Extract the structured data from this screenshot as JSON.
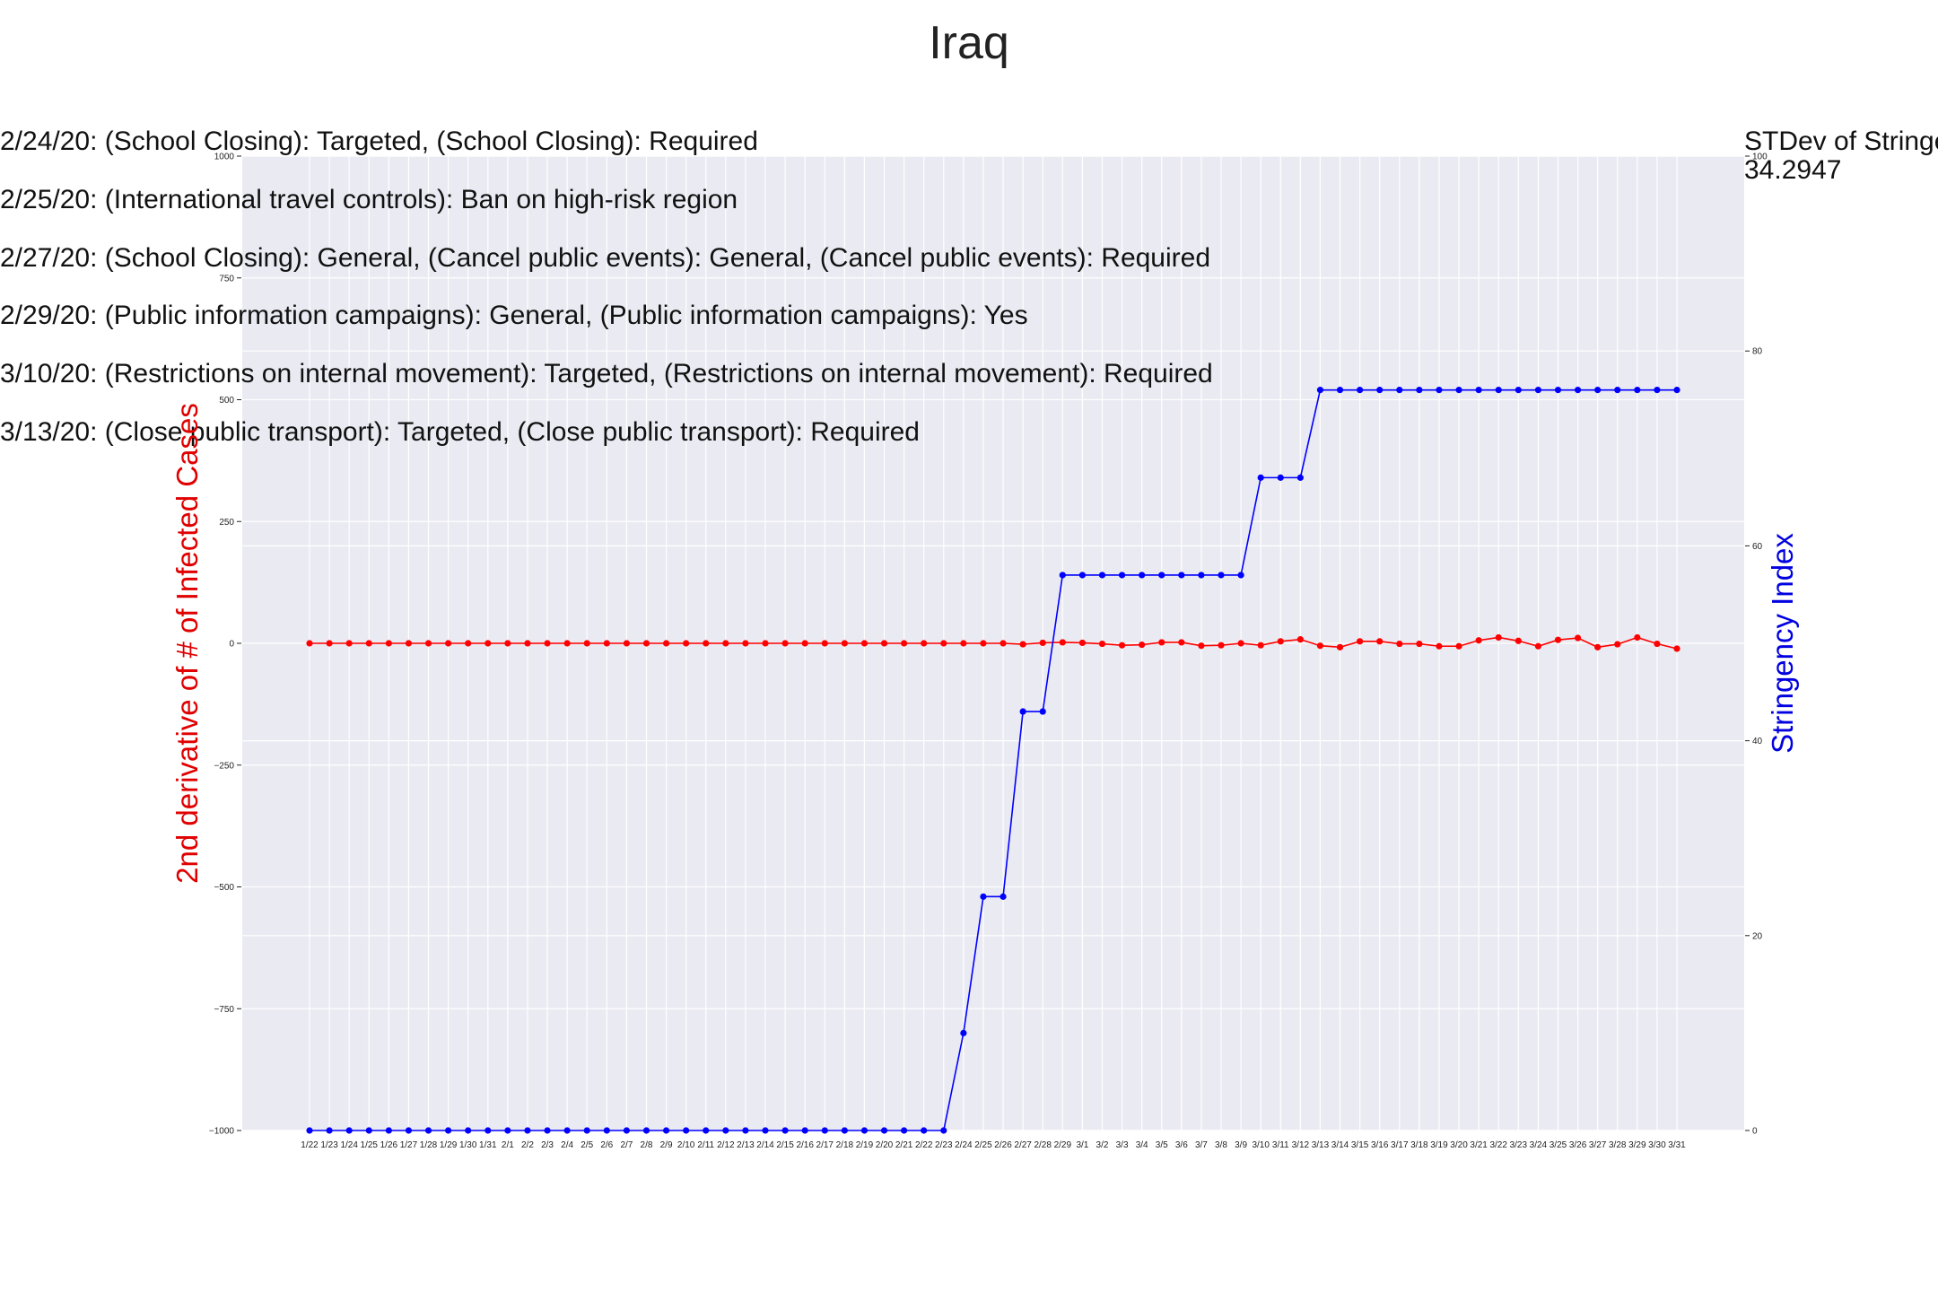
{
  "chart_data": {
    "type": "line",
    "title": "Iraq",
    "x": [
      "1/22",
      "1/23",
      "1/24",
      "1/25",
      "1/26",
      "1/27",
      "1/28",
      "1/29",
      "1/30",
      "1/31",
      "2/1",
      "2/2",
      "2/3",
      "2/4",
      "2/5",
      "2/6",
      "2/7",
      "2/8",
      "2/9",
      "2/10",
      "2/11",
      "2/12",
      "2/13",
      "2/14",
      "2/15",
      "2/16",
      "2/17",
      "2/18",
      "2/19",
      "2/20",
      "2/21",
      "2/22",
      "2/23",
      "2/24",
      "2/25",
      "2/26",
      "2/27",
      "2/28",
      "2/29",
      "3/1",
      "3/2",
      "3/3",
      "3/4",
      "3/5",
      "3/6",
      "3/7",
      "3/8",
      "3/9",
      "3/10",
      "3/11",
      "3/12",
      "3/13",
      "3/14",
      "3/15",
      "3/16",
      "3/17",
      "3/18",
      "3/19",
      "3/20",
      "3/21",
      "3/22",
      "3/23",
      "3/24",
      "3/25",
      "3/26",
      "3/27",
      "3/28",
      "3/29",
      "3/30",
      "3/31"
    ],
    "left_axis": {
      "label": "2nd derivative of # of Infected Cases",
      "color": "#e00000",
      "ylim": [
        -1000,
        1000
      ],
      "ticks": [
        -1000,
        -750,
        -500,
        -250,
        0,
        250,
        500,
        750,
        1000
      ],
      "tick_labels": [
        "−1000",
        "−750",
        "−500",
        "−250",
        "0",
        "250",
        "500",
        "750",
        "1000"
      ]
    },
    "right_axis": {
      "label": "Stringency Index",
      "color": "#0000e0",
      "ylim": [
        0,
        100
      ],
      "ticks": [
        0,
        20,
        40,
        60,
        80,
        100
      ],
      "tick_labels": [
        "0",
        "20",
        "40",
        "60",
        "80",
        "100"
      ]
    },
    "series": [
      {
        "axis": "left",
        "color": "#ff0000",
        "values": [
          0,
          0,
          0,
          0,
          0,
          0,
          0,
          0,
          0,
          0,
          0,
          0,
          0,
          0,
          0,
          0,
          0,
          0,
          0,
          0,
          0,
          0,
          0,
          0,
          0,
          0,
          0,
          0,
          0,
          0,
          0,
          0,
          0,
          0,
          0,
          0,
          -2,
          1,
          2,
          1,
          -1,
          -4,
          -3,
          2,
          2,
          -5,
          -4,
          0,
          -4,
          4,
          8,
          -5,
          -8,
          4,
          4,
          -1,
          -1,
          -6,
          -6,
          6,
          12,
          5,
          -6,
          7,
          11,
          -8,
          -2,
          12,
          -1,
          -11
        ]
      },
      {
        "axis": "right",
        "color": "#0000ff",
        "values": [
          0,
          0,
          0,
          0,
          0,
          0,
          0,
          0,
          0,
          0,
          0,
          0,
          0,
          0,
          0,
          0,
          0,
          0,
          0,
          0,
          0,
          0,
          0,
          0,
          0,
          0,
          0,
          0,
          0,
          0,
          0,
          0,
          0,
          10,
          24,
          24,
          43,
          43,
          57,
          57,
          57,
          57,
          57,
          57,
          57,
          57,
          57,
          57,
          67,
          67,
          67,
          76,
          76,
          76,
          76,
          76,
          76,
          76,
          76,
          76,
          76,
          76,
          76,
          76,
          76,
          76,
          76,
          76,
          76,
          76
        ]
      }
    ],
    "grid": true,
    "annotations": [
      "2/24/20: (School Closing): Targeted, (School Closing): Required",
      "2/25/20: (International travel controls): Ban on high-risk region",
      "2/27/20: (School Closing): General, (Cancel public events): General, (Cancel public events): Required",
      "2/29/20: (Public information campaigns): General, (Public information campaigns): Yes",
      "3/10/20: (Restrictions on internal movement): Targeted, (Restrictions on internal movement): Required",
      "3/13/20: (Close public transport): Targeted, (Close public transport): Required"
    ],
    "stat_label": "STDev of Stringency Index:",
    "stat_value": "34.2947"
  }
}
